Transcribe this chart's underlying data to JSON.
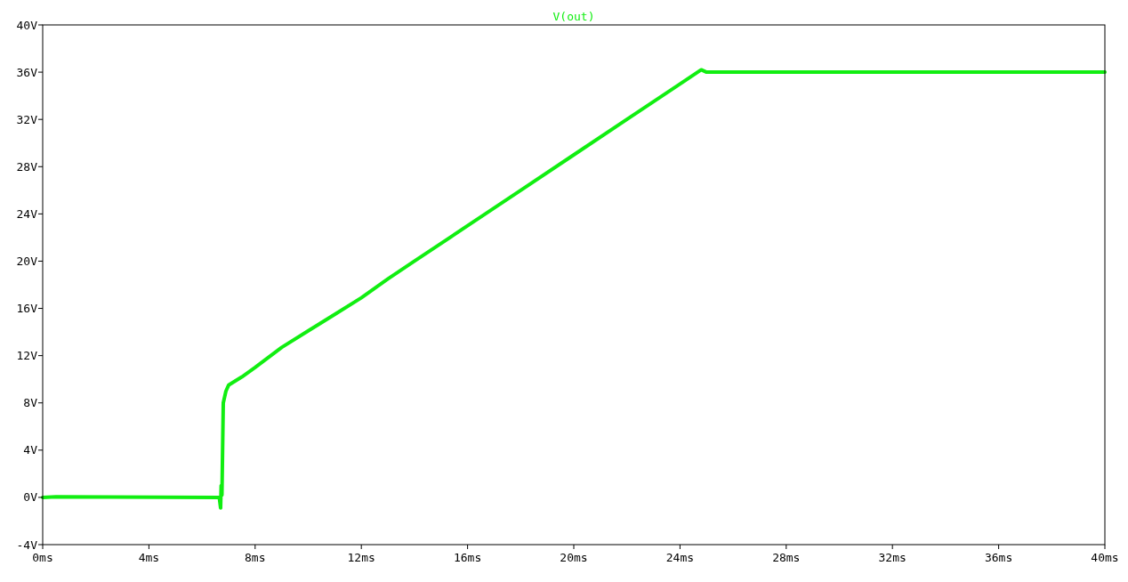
{
  "chart_data": {
    "type": "line",
    "title": "V(out)",
    "color": "#11ee11",
    "x": [
      0,
      0.5,
      6.65,
      6.7,
      6.72,
      6.75,
      6.8,
      6.9,
      7.0,
      7.5,
      8,
      9,
      10,
      11,
      12,
      13,
      14,
      16,
      18,
      20,
      22,
      24,
      24.8,
      25,
      30,
      35,
      40
    ],
    "values": [
      0,
      0.05,
      0,
      -0.9,
      1.0,
      0.2,
      8,
      9,
      9.5,
      10.2,
      11,
      12.7,
      14.1,
      15.5,
      16.9,
      18.5,
      20,
      23,
      26,
      29,
      32,
      35,
      36.2,
      36,
      36,
      36,
      36
    ],
    "xlim": [
      0,
      40
    ],
    "ylim": [
      -4,
      40
    ],
    "xticks": [
      {
        "value": 0,
        "label": "0ms"
      },
      {
        "value": 4,
        "label": "4ms"
      },
      {
        "value": 8,
        "label": "8ms"
      },
      {
        "value": 12,
        "label": "12ms"
      },
      {
        "value": 16,
        "label": "16ms"
      },
      {
        "value": 20,
        "label": "20ms"
      },
      {
        "value": 24,
        "label": "24ms"
      },
      {
        "value": 28,
        "label": "28ms"
      },
      {
        "value": 32,
        "label": "32ms"
      },
      {
        "value": 36,
        "label": "36ms"
      },
      {
        "value": 40,
        "label": "40ms"
      }
    ],
    "yticks": [
      {
        "value": -4,
        "label": "-4V"
      },
      {
        "value": 0,
        "label": "0V"
      },
      {
        "value": 4,
        "label": "4V"
      },
      {
        "value": 8,
        "label": "8V"
      },
      {
        "value": 12,
        "label": "12V"
      },
      {
        "value": 16,
        "label": "16V"
      },
      {
        "value": 20,
        "label": "20V"
      },
      {
        "value": 24,
        "label": "24V"
      },
      {
        "value": 28,
        "label": "28V"
      },
      {
        "value": 32,
        "label": "32V"
      },
      {
        "value": 36,
        "label": "36V"
      },
      {
        "value": 40,
        "label": "40V"
      }
    ],
    "grid": false,
    "marker": "none",
    "line_style": "solid"
  }
}
